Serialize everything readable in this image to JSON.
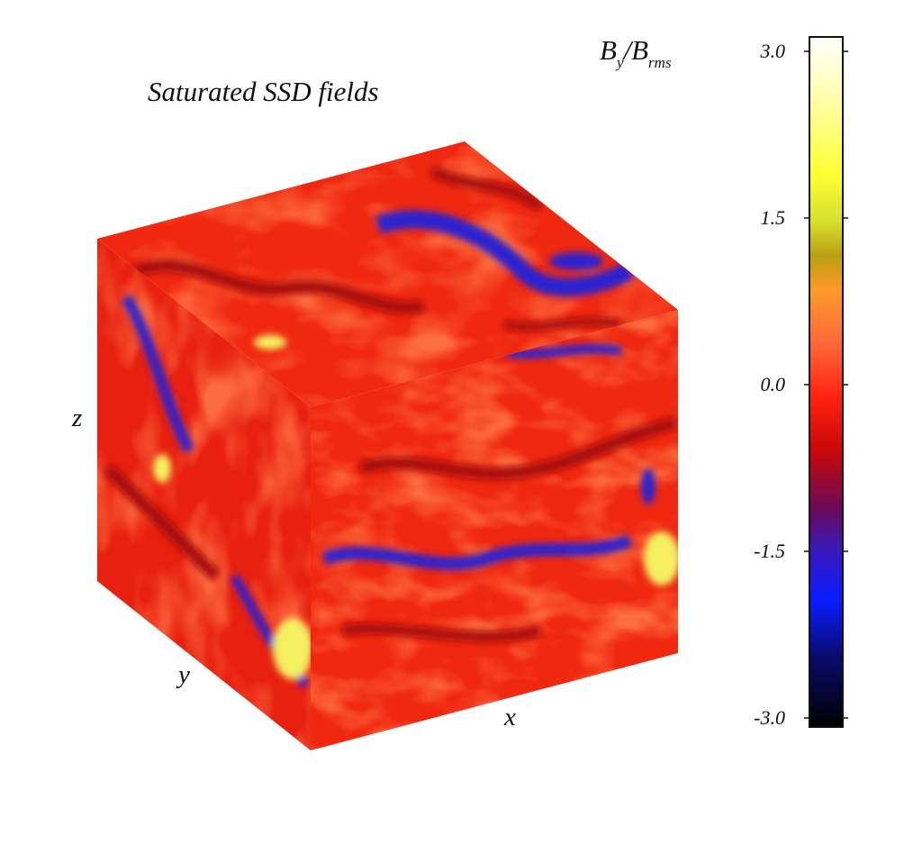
{
  "title": "Saturated SSD fields",
  "colorbar": {
    "label_main": "B",
    "label_sub1": "y",
    "label_slash": "/B",
    "label_sub2": "rms",
    "ticks": [
      {
        "value": 3.0,
        "label": "3.0"
      },
      {
        "value": 1.5,
        "label": "1.5"
      },
      {
        "value": 0.0,
        "label": "0.0"
      },
      {
        "value": -1.5,
        "label": "-1.5"
      },
      {
        "value": -3.0,
        "label": "-3.0"
      }
    ],
    "range": [
      -3.0,
      3.0
    ],
    "stops": [
      {
        "v": -3.0,
        "color": "#000000"
      },
      {
        "v": -2.4,
        "color": "#0a0a6a"
      },
      {
        "v": -1.9,
        "color": "#0a1cff"
      },
      {
        "v": -1.45,
        "color": "#3a18b8"
      },
      {
        "v": -1.1,
        "color": "#6a0a58"
      },
      {
        "v": -0.6,
        "color": "#c80808"
      },
      {
        "v": -0.15,
        "color": "#ff2010"
      },
      {
        "v": 0.35,
        "color": "#ff6a3a"
      },
      {
        "v": 0.8,
        "color": "#ff9a2a"
      },
      {
        "v": 1.1,
        "color": "#b8a010"
      },
      {
        "v": 1.4,
        "color": "#d8e030"
      },
      {
        "v": 1.8,
        "color": "#ffff30"
      },
      {
        "v": 2.4,
        "color": "#ffffa0"
      },
      {
        "v": 3.0,
        "color": "#ffffff"
      }
    ]
  },
  "axes": {
    "x": "x",
    "y": "y",
    "z": "z"
  },
  "colors": {
    "field_base": "#f02810",
    "field_dark": "#a80a10",
    "field_light": "#ff7a48",
    "field_blue": "#2a20d0",
    "field_yellow": "#f4f060"
  }
}
